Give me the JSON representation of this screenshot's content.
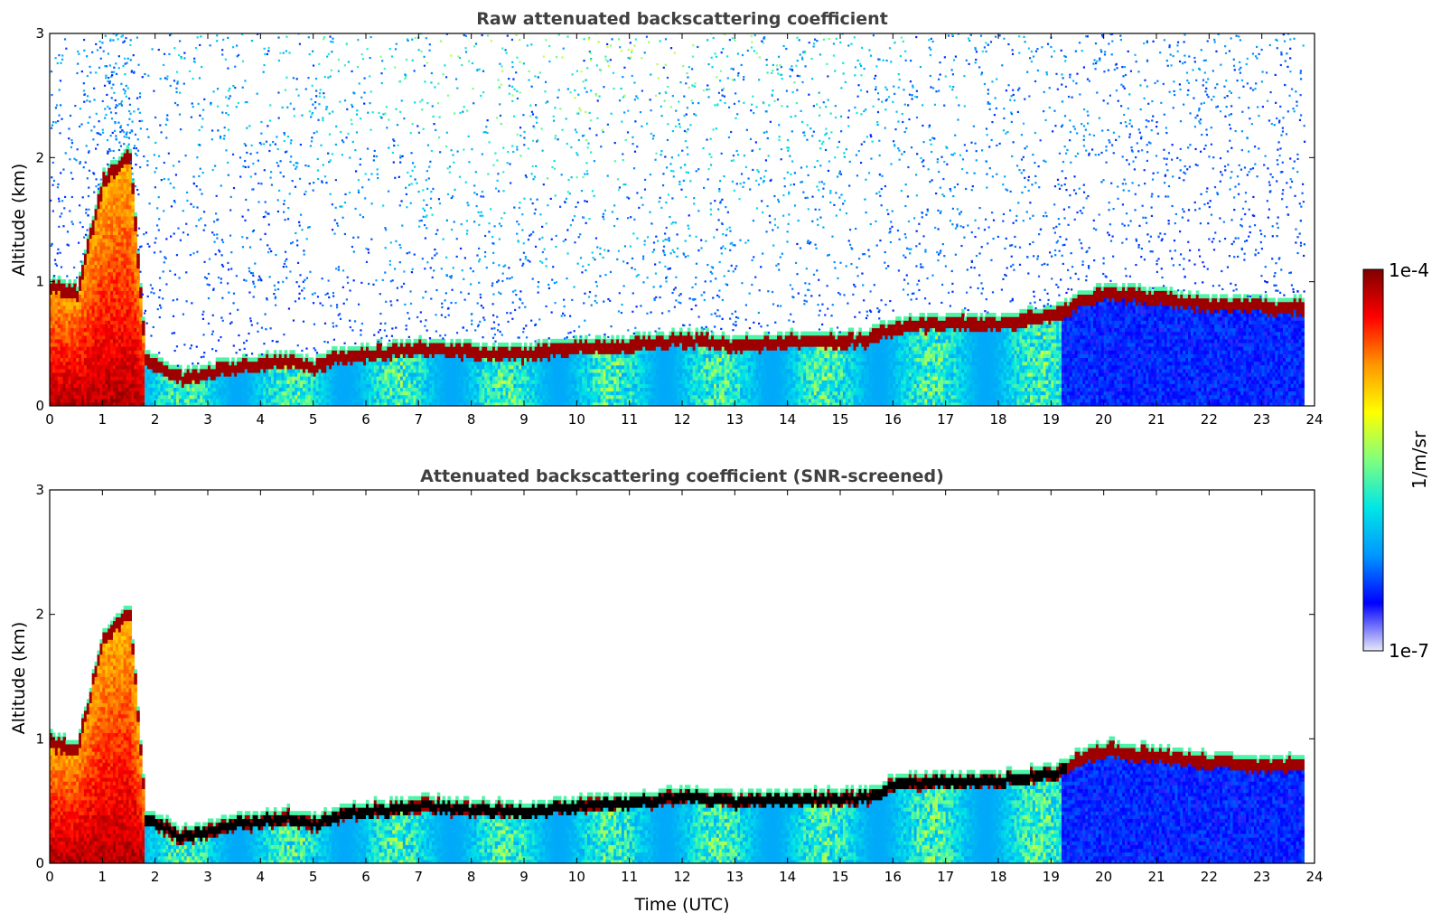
{
  "chart_data": [
    {
      "type": "heatmap",
      "title": "Raw attenuated backscattering coefficient",
      "xlabel": "",
      "ylabel": "Altitude (km)",
      "xlim": [
        0,
        24
      ],
      "ylim": [
        0,
        3
      ],
      "x_ticks": [
        "0",
        "1",
        "2",
        "3",
        "4",
        "5",
        "6",
        "7",
        "8",
        "9",
        "10",
        "11",
        "12",
        "13",
        "14",
        "15",
        "16",
        "17",
        "18",
        "19",
        "20",
        "21",
        "22",
        "23",
        "24"
      ],
      "y_ticks": [
        "0",
        "1",
        "2",
        "3"
      ],
      "noise": "heavy",
      "boundary_layer_top_km": {
        "time_utc": [
          0,
          0.5,
          1.0,
          1.5,
          1.8,
          2.0,
          2.5,
          3.0,
          3.5,
          4.0,
          4.5,
          5.0,
          5.5,
          6.0,
          7.0,
          8.0,
          9.0,
          10.0,
          11.0,
          12.0,
          13.0,
          14.0,
          15.0,
          15.5,
          16.0,
          17.0,
          17.5,
          18.0,
          18.5,
          19.0,
          19.5,
          20.0,
          21.0,
          22.0,
          23.0,
          23.8
        ],
        "altitude_km": [
          0.95,
          0.9,
          1.8,
          2.0,
          0.35,
          0.3,
          0.2,
          0.25,
          0.3,
          0.32,
          0.35,
          0.3,
          0.38,
          0.4,
          0.45,
          0.42,
          0.4,
          0.45,
          0.47,
          0.52,
          0.48,
          0.5,
          0.5,
          0.52,
          0.62,
          0.65,
          0.65,
          0.65,
          0.68,
          0.7,
          0.82,
          0.9,
          0.85,
          0.8,
          0.78,
          0.78
        ]
      }
    },
    {
      "type": "heatmap",
      "title": "Attenuated backscattering coefficient (SNR-screened)",
      "xlabel": "Time (UTC)",
      "ylabel": "Altitude (km)",
      "xlim": [
        0,
        24
      ],
      "ylim": [
        0,
        3
      ],
      "x_ticks": [
        "0",
        "1",
        "2",
        "3",
        "4",
        "5",
        "6",
        "7",
        "8",
        "9",
        "10",
        "11",
        "12",
        "13",
        "14",
        "15",
        "16",
        "17",
        "18",
        "19",
        "20",
        "21",
        "22",
        "23",
        "24"
      ],
      "y_ticks": [
        "0",
        "1",
        "2",
        "3"
      ],
      "noise": "none",
      "boundary_layer_top_km": {
        "time_utc": [
          0,
          0.5,
          1.0,
          1.5,
          1.8,
          2.0,
          2.5,
          3.0,
          3.5,
          4.0,
          4.5,
          5.0,
          5.5,
          6.0,
          7.0,
          8.0,
          9.0,
          10.0,
          11.0,
          12.0,
          13.0,
          14.0,
          15.0,
          15.5,
          16.0,
          17.0,
          17.5,
          18.0,
          18.5,
          19.0,
          19.5,
          20.0,
          21.0,
          22.0,
          23.0,
          23.8
        ],
        "altitude_km": [
          0.95,
          0.9,
          1.8,
          2.0,
          0.35,
          0.3,
          0.2,
          0.25,
          0.3,
          0.32,
          0.35,
          0.3,
          0.38,
          0.4,
          0.45,
          0.42,
          0.4,
          0.45,
          0.47,
          0.52,
          0.48,
          0.5,
          0.5,
          0.52,
          0.62,
          0.65,
          0.65,
          0.65,
          0.68,
          0.7,
          0.82,
          0.9,
          0.85,
          0.8,
          0.78,
          0.78
        ]
      }
    }
  ],
  "colorbar": {
    "label": "1/m/sr",
    "max_label": "1e-4",
    "min_label": "1e-7",
    "scale": "log",
    "range": [
      1e-07,
      0.0001
    ],
    "colormap": [
      "#e8e8f8",
      "#0000ff",
      "#0096ff",
      "#00e6e6",
      "#7fff7f",
      "#ffff00",
      "#ff9600",
      "#ff0000",
      "#800000"
    ]
  }
}
